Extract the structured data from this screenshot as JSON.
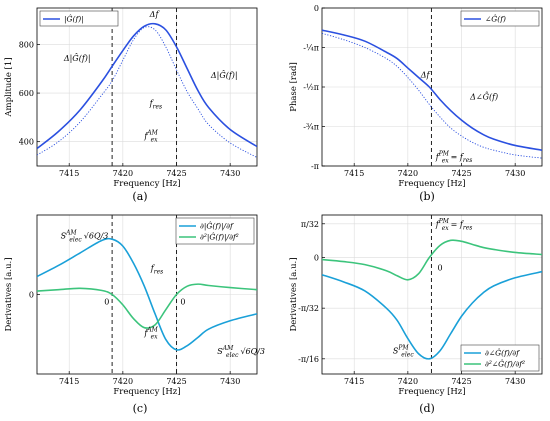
{
  "figure": {
    "panels": [
      {
        "id": "a",
        "caption": "(a)"
      },
      {
        "id": "b",
        "caption": "(b)"
      },
      {
        "id": "c",
        "caption": "(c)"
      },
      {
        "id": "d",
        "caption": "(d)"
      }
    ]
  },
  "chart_data": [
    {
      "id": "a",
      "type": "line",
      "caption": "(a)",
      "xlabel": "Frequency [Hz]",
      "ylabel": "Amplitude [1]",
      "xlim": [
        7412,
        7432.5
      ],
      "ylim": [
        300,
        950
      ],
      "xticks": [
        {
          "v": 7415,
          "label": "7415"
        },
        {
          "v": 7420,
          "label": "7420"
        },
        {
          "v": 7425,
          "label": "7425"
        },
        {
          "v": 7430,
          "label": "7430"
        }
      ],
      "yticks": [
        {
          "v": 400,
          "label": "400"
        },
        {
          "v": 600,
          "label": "600"
        },
        {
          "v": 800,
          "label": "800"
        }
      ],
      "grid": true,
      "legend": "top-left",
      "series": [
        {
          "name": "|Ĝ(f)|",
          "style": "solid",
          "color": "#2b50e0",
          "x": [
            7412,
            7414,
            7416,
            7418,
            7419,
            7420,
            7421,
            7422,
            7423,
            7424,
            7425,
            7426,
            7427,
            7428,
            7430,
            7432.5
          ],
          "y": [
            372,
            442,
            530,
            645,
            710,
            775,
            835,
            875,
            885,
            860,
            790,
            700,
            610,
            540,
            450,
            380
          ]
        },
        {
          "name": "",
          "style": "dotted",
          "color": "#2b50e0",
          "x": [
            7412,
            7414,
            7416,
            7418,
            7419,
            7420,
            7421,
            7422,
            7423,
            7424,
            7425,
            7426,
            7427,
            7428,
            7430,
            7432.5
          ],
          "y": [
            345,
            400,
            480,
            590,
            650,
            735,
            820,
            870,
            860,
            790,
            695,
            605,
            535,
            470,
            395,
            335
          ]
        }
      ],
      "vlines": [
        7419,
        7425
      ],
      "annotations": [
        {
          "text": "Δf",
          "x": 7422.5,
          "y": 925
        },
        {
          "text": "Δ|Ĝ(f)|",
          "x": 7414.5,
          "y": 745
        },
        {
          "text": "Δ|Ĝ(f)|",
          "x": 7428.2,
          "y": 675
        },
        {
          "text": "f",
          "sub": "res",
          "x": 7422.5,
          "y": 560
        },
        {
          "text": "f",
          "sub": "ex",
          "sup": "AM",
          "x": 7422,
          "y": 425
        }
      ]
    },
    {
      "id": "b",
      "type": "line",
      "caption": "(b)",
      "xlabel": "Frequency [Hz]",
      "ylabel": "Phase [rad]",
      "xlim": [
        7412,
        7432.5
      ],
      "ylim": [
        -1.0,
        0.0
      ],
      "xticks": [
        {
          "v": 7415,
          "label": "7415"
        },
        {
          "v": 7420,
          "label": "7420"
        },
        {
          "v": 7425,
          "label": "7425"
        },
        {
          "v": 7430,
          "label": "7430"
        }
      ],
      "yticks": [
        {
          "v": 0,
          "label": "0"
        },
        {
          "v": -0.25,
          "label": "-¼π"
        },
        {
          "v": -0.5,
          "label": "-½π"
        },
        {
          "v": -0.75,
          "label": "-¾π"
        },
        {
          "v": -1.0,
          "label": "-π"
        }
      ],
      "grid": true,
      "legend": "top-right",
      "series": [
        {
          "name": "∠Ĝ(f)",
          "style": "solid",
          "color": "#2b50e0",
          "x": [
            7412,
            7414,
            7416,
            7418,
            7419,
            7420,
            7421,
            7422,
            7423,
            7424,
            7425,
            7426,
            7427,
            7428,
            7430,
            7432.5
          ],
          "y": [
            -0.14,
            -0.17,
            -0.21,
            -0.28,
            -0.32,
            -0.38,
            -0.44,
            -0.5,
            -0.58,
            -0.65,
            -0.71,
            -0.76,
            -0.8,
            -0.83,
            -0.87,
            -0.9
          ]
        },
        {
          "name": "",
          "style": "dotted",
          "color": "#2b50e0",
          "x": [
            7412,
            7414,
            7416,
            7418,
            7419,
            7420,
            7421,
            7422,
            7423,
            7424,
            7425,
            7426,
            7427,
            7428,
            7430,
            7432.5
          ],
          "y": [
            -0.16,
            -0.2,
            -0.25,
            -0.32,
            -0.37,
            -0.44,
            -0.52,
            -0.61,
            -0.69,
            -0.76,
            -0.81,
            -0.85,
            -0.88,
            -0.9,
            -0.93,
            -0.95
          ]
        }
      ],
      "vlines": [
        7422.2
      ],
      "annotations": [
        {
          "text": "Δf",
          "x": 7421.2,
          "y": -0.42
        },
        {
          "text": "Δ∠Ĝ(f)",
          "x": 7425.8,
          "y": -0.56
        },
        {
          "text": "f",
          "sub": "ex",
          "sup": "PM",
          "tail": "= f",
          "tailsub": "res",
          "x": 7422.6,
          "y": -0.94
        }
      ]
    },
    {
      "id": "c",
      "type": "line",
      "caption": "(c)",
      "xlabel": "Frequency [Hz]",
      "ylabel": "Derivatives [a.u.]",
      "xlim": [
        7412,
        7432.5
      ],
      "ylim": [
        -1.15,
        1.15
      ],
      "xticks": [
        {
          "v": 7415,
          "label": "7415"
        },
        {
          "v": 7420,
          "label": "7420"
        },
        {
          "v": 7425,
          "label": "7425"
        },
        {
          "v": 7430,
          "label": "7430"
        }
      ],
      "yticks": [
        {
          "v": 0,
          "label": "0"
        }
      ],
      "grid": true,
      "legend": "top-right",
      "series": [
        {
          "name": "∂|Ĝ(f)|/∂f",
          "style": "solid",
          "color": "#1aa0d8",
          "x": [
            7412,
            7414,
            7416,
            7418,
            7419,
            7420,
            7421,
            7422,
            7423,
            7424,
            7425,
            7426,
            7427,
            7428,
            7430,
            7432.5
          ],
          "y": [
            0.26,
            0.42,
            0.6,
            0.78,
            0.8,
            0.7,
            0.45,
            0.12,
            -0.28,
            -0.65,
            -0.8,
            -0.74,
            -0.62,
            -0.5,
            -0.38,
            -0.28
          ]
        },
        {
          "name": "∂²|Ĝ(f)|/∂f²",
          "style": "solid",
          "color": "#3cc47c",
          "x": [
            7412,
            7414,
            7416,
            7418,
            7419,
            7420,
            7421,
            7422,
            7423,
            7424,
            7425,
            7426,
            7427,
            7428,
            7430,
            7432.5
          ],
          "y": [
            0.05,
            0.07,
            0.09,
            0.06,
            0.0,
            -0.15,
            -0.35,
            -0.48,
            -0.44,
            -0.22,
            0.0,
            0.12,
            0.15,
            0.13,
            0.1,
            0.07
          ]
        }
      ],
      "vlines": [
        7419,
        7425
      ],
      "annotations": [
        {
          "text": "S",
          "sub": "elec",
          "sup": "AM",
          "tail": "√6Q/3",
          "x": 7414.2,
          "y": 0.85
        },
        {
          "text": "f",
          "sub": "res",
          "x": 7422.6,
          "y": 0.38
        },
        {
          "text": "0",
          "x": 7418.5,
          "y": -0.1
        },
        {
          "text": "0",
          "x": 7425.6,
          "y": -0.1
        },
        {
          "text": "f",
          "sub": "ex",
          "sup": "AM",
          "x": 7422,
          "y": -0.55
        },
        {
          "text": "S",
          "sub": "elec",
          "sup": "AM",
          "tail": "√6Q/3",
          "x": 7428.8,
          "y": -0.82
        }
      ]
    },
    {
      "id": "d",
      "type": "line",
      "caption": "(d)",
      "xlabel": "Frequency [Hz]",
      "ylabel": "Derivatives [a.u.]",
      "xlim": [
        7412,
        7432.5
      ],
      "ylim": [
        -1.15,
        0.42
      ],
      "xticks": [
        {
          "v": 7415,
          "label": "7415"
        },
        {
          "v": 7420,
          "label": "7420"
        },
        {
          "v": 7425,
          "label": "7425"
        },
        {
          "v": 7430,
          "label": "7430"
        }
      ],
      "yticks": [
        {
          "v": 0.3333,
          "label": "π/32"
        },
        {
          "v": 0,
          "label": "0"
        },
        {
          "v": -0.5,
          "label": "-π/32"
        },
        {
          "v": -1.0,
          "label": "-π/16"
        }
      ],
      "grid": true,
      "legend": "bottom-right",
      "series": [
        {
          "name": "∂∠Ĝ(f)/∂f",
          "style": "solid",
          "color": "#1aa0d8",
          "x": [
            7412,
            7414,
            7416,
            7418,
            7419,
            7420,
            7421,
            7422,
            7423,
            7424,
            7425,
            7426,
            7427,
            7428,
            7430,
            7432.5
          ],
          "y": [
            -0.17,
            -0.24,
            -0.33,
            -0.5,
            -0.62,
            -0.8,
            -0.95,
            -1.0,
            -0.92,
            -0.75,
            -0.58,
            -0.45,
            -0.35,
            -0.28,
            -0.2,
            -0.14
          ]
        },
        {
          "name": "∂²∠Ĝ(f)/∂f²",
          "style": "solid",
          "color": "#3cc47c",
          "x": [
            7412,
            7414,
            7416,
            7418,
            7419,
            7420,
            7421,
            7422,
            7423,
            7424,
            7425,
            7426,
            7427,
            7428,
            7430,
            7432.5
          ],
          "y": [
            -0.02,
            -0.04,
            -0.07,
            -0.13,
            -0.18,
            -0.22,
            -0.16,
            0.0,
            0.12,
            0.17,
            0.16,
            0.13,
            0.1,
            0.08,
            0.05,
            0.03
          ]
        }
      ],
      "vlines": [
        7422.2
      ],
      "annotations": [
        {
          "text": "f",
          "sub": "ex",
          "sup": "PM",
          "tail": "= f",
          "tailsub": "res",
          "x": 7422.6,
          "y": 0.33
        },
        {
          "text": "0",
          "x": 7423.0,
          "y": -0.1
        },
        {
          "text": "S",
          "sub": "elec",
          "sup": "PM",
          "x": 7418.6,
          "y": -0.92
        }
      ]
    }
  ]
}
